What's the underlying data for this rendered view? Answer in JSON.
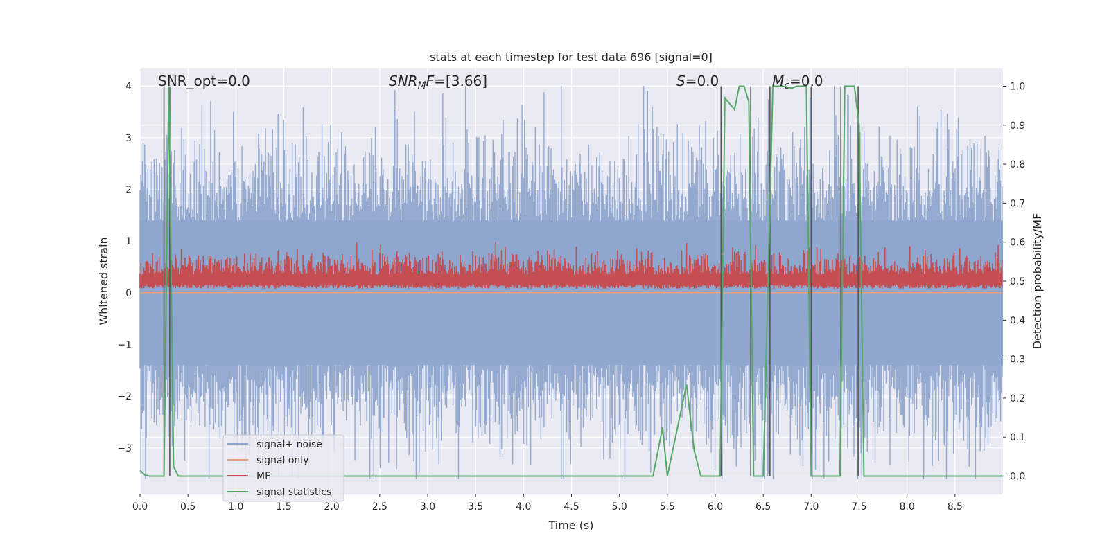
{
  "chart_data": {
    "type": "line",
    "title": "stats at each timestep for test data 696 [signal=0]",
    "xlabel": "Time (s)",
    "ylabel": "Whitened strain",
    "y2label": "Detection probability/MF",
    "xlim": [
      0,
      9.0
    ],
    "ylim": [
      -3.9,
      4.35
    ],
    "y2lim": [
      -0.047,
      1.047
    ],
    "grid": true,
    "legend_position": "lower-left",
    "x_ticks": [
      "0.0",
      "0.5",
      "1.0",
      "1.5",
      "2.0",
      "2.5",
      "3.0",
      "3.5",
      "4.0",
      "4.5",
      "5.0",
      "5.5",
      "6.0",
      "6.5",
      "7.0",
      "7.5",
      "8.0",
      "8.5"
    ],
    "y_ticks": [
      "−3",
      "−2",
      "−1",
      "0",
      "1",
      "2",
      "3",
      "4"
    ],
    "y2_ticks": [
      "0.0",
      "0.1",
      "0.2",
      "0.3",
      "0.4",
      "0.5",
      "0.6",
      "0.7",
      "0.8",
      "0.9",
      "1.0"
    ],
    "annotations": {
      "snr_opt": "SNR_opt=0.0",
      "snr_mf_base": "SNR",
      "snr_mf_sub": "M",
      "snr_mf_rest": "F",
      "snr_mf_value": "=[3.66]",
      "s_label": "S",
      "s_value": "=0.0",
      "mc_label": "M",
      "mc_sub": "c",
      "mc_value": "=0.0"
    },
    "series": [
      {
        "name": "signal+ noise",
        "color": "#8fa6cf",
        "stats": {
          "sampling": "dense noise",
          "upper_envelope_approx": 2.4,
          "lower_envelope_approx": -2.4
        }
      },
      {
        "name": "signal only",
        "color": "#e8a07f",
        "values_constant": 0.0
      },
      {
        "name": "MF",
        "color": "#c44e52",
        "stats": {
          "baseline": 0.1,
          "upper_envelope_approx": 0.75
        }
      },
      {
        "name": "signal statistics",
        "color": "#55a868",
        "x": [
          0.0,
          0.05,
          0.1,
          0.15,
          0.2,
          0.25,
          0.3,
          0.35,
          0.4,
          0.45,
          5.2,
          5.35,
          5.45,
          5.5,
          5.7,
          5.78,
          5.85,
          5.95,
          6.05,
          6.1,
          6.2,
          6.25,
          6.3,
          6.35,
          6.4,
          6.45,
          6.5,
          6.6,
          6.65,
          6.7,
          6.8,
          6.85,
          6.9,
          6.95,
          7.0,
          7.05,
          7.1,
          7.3,
          7.35,
          7.4,
          7.45,
          7.5,
          7.55,
          8.0,
          9.0
        ],
        "y": [
          0.015,
          0.003,
          0.0,
          0.0,
          0.0,
          0.0,
          1.0,
          0.025,
          0.0,
          0.0,
          0.0,
          0.0,
          0.125,
          0.0,
          0.235,
          0.065,
          0.0,
          0.0,
          0.0,
          0.97,
          0.94,
          1.0,
          1.0,
          0.96,
          0.0,
          0.0,
          0.0,
          1.0,
          1.0,
          1.0,
          0.995,
          1.0,
          1.0,
          1.0,
          0.0,
          0.0,
          0.0,
          0.0,
          1.0,
          1.0,
          1.0,
          0.9,
          0.0,
          0.0,
          0.0
        ],
        "axis": "right"
      }
    ],
    "vlines_right_axis": [
      {
        "x": 0.25,
        "y0": 0.0,
        "y1": 1.0
      },
      {
        "x": 0.31,
        "y0": 0.0,
        "y1": 1.0
      },
      {
        "x": 6.06,
        "y0": 0.0,
        "y1": 1.0
      },
      {
        "x": 6.37,
        "y0": 0.0,
        "y1": 1.0
      },
      {
        "x": 6.57,
        "y0": 0.0,
        "y1": 1.0
      },
      {
        "x": 7.0,
        "y0": 0.0,
        "y1": 1.0
      },
      {
        "x": 7.31,
        "y0": 0.0,
        "y1": 1.0
      },
      {
        "x": 7.49,
        "y0": 0.0,
        "y1": 1.0
      }
    ],
    "legend": [
      "signal+ noise",
      "signal only",
      "MF",
      "signal statistics"
    ]
  }
}
